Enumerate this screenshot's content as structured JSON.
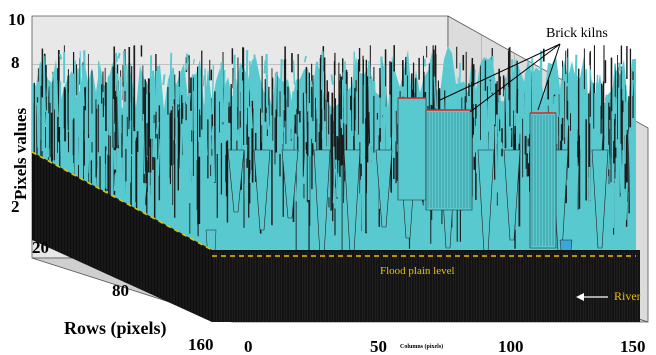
{
  "chart_data": {
    "type": "3d-surface",
    "title": "",
    "zlabel": "Pixels values",
    "ylabel": "Rows (pixels)",
    "xlabel": "Columns (pixels)",
    "z_ticks": [
      "10",
      "8",
      "2"
    ],
    "row_ticks": [
      "20",
      "80",
      "160"
    ],
    "col_ticks": [
      "0",
      "50",
      "100",
      "150"
    ],
    "zlim": [
      0,
      10
    ],
    "xlim": [
      0,
      150
    ],
    "ylim": [
      0,
      160
    ],
    "annotations": {
      "kilns": "Brick kilns",
      "flood": "Flood plain level",
      "river": "River"
    },
    "grid": true,
    "colors": {
      "surface": "#58c9cf",
      "dark": "#101010",
      "wall": "#e6e6e6",
      "flood_line": "#e8c000",
      "kiln_line": "#e02020",
      "river_arrow": "#ffffff"
    }
  }
}
